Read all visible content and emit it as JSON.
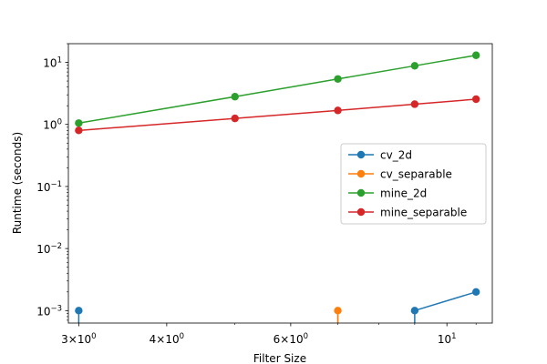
{
  "chart_data": {
    "type": "line",
    "xlabel": "Filter Size",
    "ylabel": "Runtime (seconds)",
    "xscale": "log",
    "yscale": "log",
    "xlim": [
      2.9,
      11.6
    ],
    "ylim": [
      0.00063,
      20
    ],
    "grid": false,
    "legend_position": "center-right",
    "x_ticks": [
      {
        "value": 3,
        "base": "3×10",
        "exp": "0"
      },
      {
        "value": 4,
        "base": "4×10",
        "exp": "0"
      },
      {
        "value": 6,
        "base": "6×10",
        "exp": "0"
      },
      {
        "value": 10,
        "base": "10",
        "exp": "1"
      }
    ],
    "y_ticks": [
      {
        "value": 0.001,
        "base": "10",
        "exp": "−3"
      },
      {
        "value": 0.01,
        "base": "10",
        "exp": "−2"
      },
      {
        "value": 0.1,
        "base": "10",
        "exp": "−1"
      },
      {
        "value": 1,
        "base": "10",
        "exp": "0"
      },
      {
        "value": 10,
        "base": "10",
        "exp": "1"
      }
    ],
    "series": [
      {
        "name": "cv_2d",
        "color": "#1f77b4",
        "points": [
          [
            3,
            0.001
          ],
          [
            5,
            0
          ],
          [
            7,
            0
          ],
          [
            9,
            0.001
          ],
          [
            11,
            0.002
          ]
        ]
      },
      {
        "name": "cv_separable",
        "color": "#ff7f0e",
        "points": [
          [
            3,
            0
          ],
          [
            5,
            0
          ],
          [
            7,
            0.001
          ],
          [
            9,
            0
          ],
          [
            11,
            0
          ]
        ]
      },
      {
        "name": "mine_2d",
        "color": "#2ca02c",
        "points": [
          [
            3,
            1.05
          ],
          [
            5,
            2.8
          ],
          [
            7,
            5.4
          ],
          [
            9,
            8.8
          ],
          [
            11,
            13.0
          ]
        ]
      },
      {
        "name": "mine_separable",
        "color": "#d62728",
        "points": [
          [
            3,
            0.8
          ],
          [
            5,
            1.25
          ],
          [
            7,
            1.68
          ],
          [
            9,
            2.12
          ],
          [
            11,
            2.55
          ]
        ]
      }
    ]
  }
}
